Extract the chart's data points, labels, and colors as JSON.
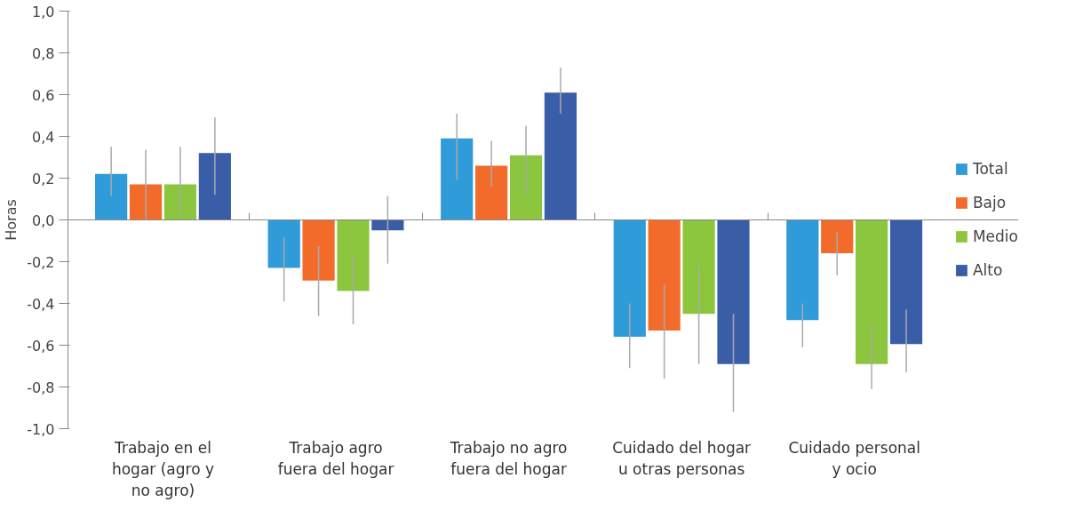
{
  "chart_data": {
    "type": "bar",
    "ylabel": "Horas",
    "categories": [
      "Trabajo en el\nhogar (agro y\nno agro)",
      "Trabajo agro\nfuera del hogar",
      "Trabajo no agro\nfuera del hogar",
      "Cuidado del hogar\nu otras personas",
      "Cuidado personal\ny ocio"
    ],
    "series": [
      {
        "name": "Total",
        "color": "#2f9bd8",
        "values": [
          0.22,
          -0.23,
          0.39,
          -0.56,
          -0.48
        ],
        "errors": [
          [
            0.115,
            0.35
          ],
          [
            -0.39,
            -0.085
          ],
          [
            0.19,
            0.51
          ],
          [
            -0.71,
            -0.4
          ],
          [
            -0.61,
            -0.4
          ]
        ]
      },
      {
        "name": "Bajo",
        "color": "#f26b2a",
        "values": [
          0.17,
          -0.29,
          0.26,
          -0.53,
          -0.16
        ],
        "errors": [
          [
            0.0,
            0.335
          ],
          [
            -0.46,
            -0.125
          ],
          [
            0.16,
            0.38
          ],
          [
            -0.76,
            -0.31
          ],
          [
            -0.265,
            -0.06
          ]
        ]
      },
      {
        "name": "Medio",
        "color": "#8cc63f",
        "values": [
          0.17,
          -0.34,
          0.31,
          -0.45,
          -0.69
        ],
        "errors": [
          [
            0.02,
            0.35
          ],
          [
            -0.5,
            -0.17
          ],
          [
            0.12,
            0.45
          ],
          [
            -0.69,
            -0.22
          ],
          [
            -0.81,
            -0.5
          ]
        ]
      },
      {
        "name": "Alto",
        "color": "#3a5da8",
        "values": [
          0.32,
          -0.05,
          0.61,
          -0.69,
          -0.595
        ],
        "errors": [
          [
            0.12,
            0.49
          ],
          [
            -0.21,
            0.115
          ],
          [
            0.51,
            0.73
          ],
          [
            -0.92,
            -0.45
          ],
          [
            -0.73,
            -0.43
          ]
        ]
      }
    ],
    "ylim": [
      -1.0,
      1.0
    ],
    "yticks": [
      {
        "value": -1.0,
        "label": "-1,0"
      },
      {
        "value": -0.8,
        "label": "-0,8"
      },
      {
        "value": -0.6,
        "label": "-0,6"
      },
      {
        "value": -0.4,
        "label": "-0,4"
      },
      {
        "value": -0.2,
        "label": "-0,2"
      },
      {
        "value": 0.0,
        "label": "0,0"
      },
      {
        "value": 0.2,
        "label": "0,2"
      },
      {
        "value": 0.4,
        "label": "0,4"
      },
      {
        "value": 0.6,
        "label": "0,6"
      },
      {
        "value": 0.8,
        "label": "0,8"
      },
      {
        "value": 1.0,
        "label": "1,0"
      }
    ],
    "ref_lines": [
      {
        "axis": "y",
        "value": 0.0,
        "color": "#888888"
      }
    ],
    "grid": false,
    "legend": "right"
  }
}
